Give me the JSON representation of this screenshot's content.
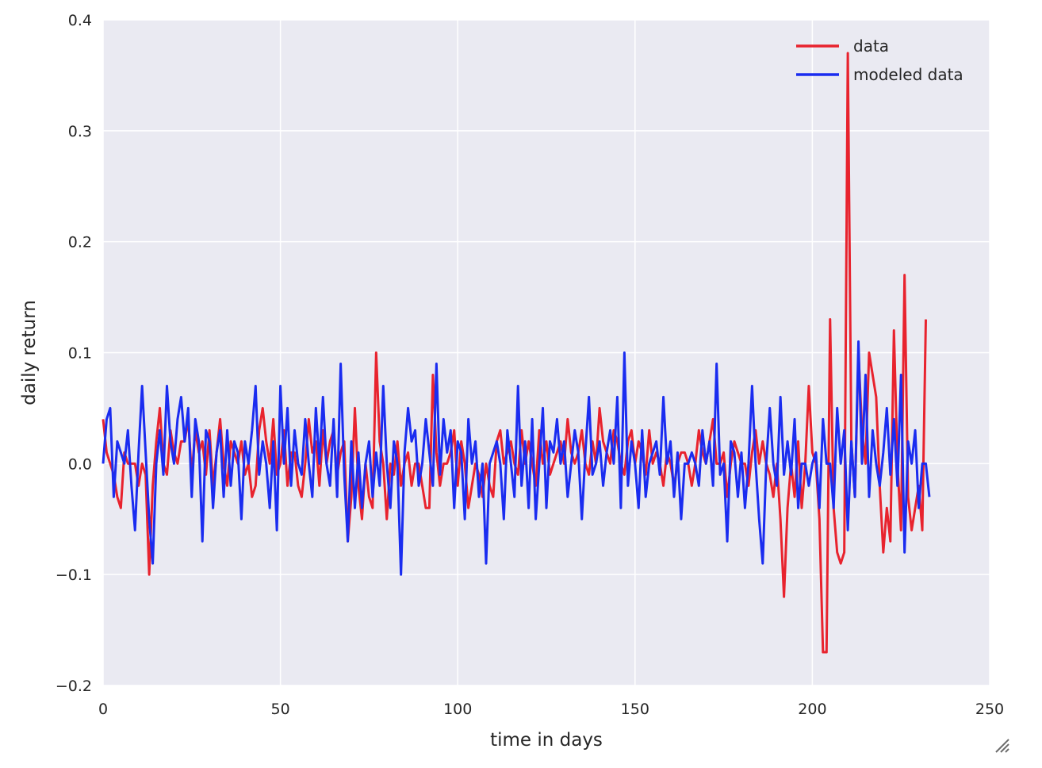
{
  "chart_data": {
    "type": "line",
    "title": "",
    "xlabel": "time in days",
    "ylabel": "daily return",
    "xlim": [
      0,
      250
    ],
    "ylim": [
      -0.2,
      0.4
    ],
    "xticks": [
      0,
      50,
      100,
      150,
      200,
      250
    ],
    "yticks": [
      -0.2,
      -0.1,
      0.0,
      0.1,
      0.2,
      0.3,
      0.4
    ],
    "xtick_labels": [
      "0",
      "50",
      "100",
      "150",
      "200",
      "250"
    ],
    "ytick_labels": [
      "−0.2",
      "−0.1",
      "0.0",
      "0.1",
      "0.2",
      "0.3",
      "0.4"
    ],
    "grid": true,
    "legend_position": "top-right",
    "background_color": "#eaeaf2",
    "grid_color": "#ffffff",
    "series": [
      {
        "name": "data",
        "color": "#e8232e",
        "values": [
          0.04,
          0.01,
          0.0,
          -0.01,
          -0.03,
          -0.04,
          0.01,
          0.0,
          0.0,
          0.0,
          -0.02,
          0.0,
          -0.01,
          -0.1,
          -0.02,
          0.02,
          0.05,
          0.0,
          -0.01,
          0.03,
          0.01,
          0.0,
          0.02,
          0.02,
          0.04,
          -0.01,
          0.03,
          0.01,
          0.02,
          -0.01,
          0.03,
          -0.02,
          0.01,
          0.04,
          0.0,
          -0.02,
          0.02,
          0.01,
          0.0,
          0.02,
          -0.01,
          0.0,
          -0.03,
          -0.02,
          0.03,
          0.05,
          0.02,
          0.0,
          0.04,
          -0.01,
          0.0,
          0.03,
          -0.02,
          0.01,
          0.01,
          -0.02,
          -0.03,
          0.0,
          0.04,
          0.01,
          0.02,
          -0.02,
          0.03,
          0.0,
          0.02,
          0.03,
          -0.01,
          0.01,
          0.02,
          -0.07,
          -0.03,
          0.05,
          -0.02,
          -0.05,
          0.0,
          -0.03,
          -0.04,
          0.1,
          0.02,
          0.0,
          -0.05,
          0.0,
          -0.01,
          0.02,
          -0.02,
          0.0,
          0.01,
          -0.02,
          0.0,
          0.0,
          -0.02,
          -0.04,
          -0.04,
          0.08,
          0.01,
          -0.02,
          0.0,
          0.0,
          0.01,
          0.03,
          -0.02,
          0.02,
          0.0,
          -0.04,
          -0.02,
          0.0,
          -0.01,
          -0.03,
          0.0,
          -0.02,
          -0.03,
          0.02,
          0.03,
          0.0,
          0.01,
          0.02,
          0.0,
          -0.01,
          0.03,
          0.0,
          0.02,
          0.0,
          -0.02,
          0.03,
          0.0,
          0.02,
          -0.01,
          0.0,
          0.01,
          0.02,
          0.0,
          0.04,
          0.01,
          0.0,
          0.01,
          0.03,
          0.0,
          -0.01,
          0.02,
          0.0,
          0.05,
          0.02,
          0.01,
          0.0,
          0.03,
          0.02,
          0.0,
          -0.01,
          0.02,
          0.03,
          0.0,
          0.02,
          0.01,
          -0.01,
          0.03,
          0.0,
          0.01,
          0.0,
          -0.02,
          0.01,
          0.0,
          -0.02,
          0.0,
          0.01,
          0.01,
          0.0,
          -0.02,
          0.0,
          0.03,
          0.01,
          0.0,
          0.02,
          0.04,
          0.0,
          0.0,
          0.01,
          -0.03,
          0.0,
          0.02,
          0.01,
          0.0,
          0.0,
          -0.02,
          0.01,
          0.03,
          0.0,
          0.02,
          0.0,
          -0.01,
          -0.03,
          0.0,
          -0.05,
          -0.12,
          -0.04,
          0.0,
          -0.03,
          0.02,
          -0.04,
          0.0,
          0.07,
          0.01,
          0.0,
          -0.05,
          -0.17,
          -0.17,
          0.13,
          -0.04,
          -0.08,
          -0.09,
          -0.08,
          0.37,
          0.02,
          -0.03,
          0.1,
          0.03,
          0.0,
          0.1,
          0.08,
          0.06,
          -0.02,
          -0.08,
          -0.04,
          -0.07,
          0.12,
          0.0,
          -0.06,
          0.17,
          -0.03,
          -0.06,
          -0.04,
          -0.02,
          -0.06,
          0.13
        ],
        "x_step": 1
      },
      {
        "name": "modeled data",
        "color": "#1a2cf0",
        "values": [
          0.0,
          0.04,
          0.05,
          -0.03,
          0.02,
          0.01,
          0.0,
          0.03,
          -0.02,
          -0.06,
          0.01,
          0.07,
          0.01,
          -0.05,
          -0.09,
          0.0,
          0.03,
          -0.01,
          0.07,
          0.02,
          0.0,
          0.04,
          0.06,
          0.02,
          0.05,
          -0.03,
          0.04,
          0.02,
          -0.07,
          0.03,
          0.02,
          -0.04,
          0.01,
          0.03,
          -0.03,
          0.03,
          -0.02,
          0.02,
          0.01,
          -0.05,
          0.02,
          0.0,
          0.03,
          0.07,
          -0.01,
          0.02,
          0.0,
          -0.04,
          0.02,
          -0.06,
          0.07,
          0.0,
          0.05,
          -0.02,
          0.03,
          0.0,
          -0.01,
          0.04,
          0.0,
          -0.03,
          0.05,
          0.0,
          0.06,
          0.0,
          -0.02,
          0.04,
          -0.03,
          0.09,
          -0.01,
          -0.07,
          0.02,
          -0.04,
          0.01,
          -0.04,
          0.0,
          0.02,
          -0.03,
          0.01,
          -0.02,
          0.07,
          0.0,
          -0.04,
          0.02,
          0.0,
          -0.1,
          0.01,
          0.05,
          0.02,
          0.03,
          -0.02,
          0.0,
          0.04,
          0.01,
          -0.02,
          0.09,
          -0.01,
          0.04,
          0.01,
          0.03,
          -0.04,
          0.02,
          0.01,
          -0.05,
          0.04,
          0.0,
          0.02,
          -0.03,
          0.0,
          -0.09,
          0.0,
          0.01,
          0.02,
          0.0,
          -0.05,
          0.03,
          0.0,
          -0.03,
          0.07,
          -0.02,
          0.02,
          -0.04,
          0.04,
          -0.05,
          0.0,
          0.05,
          -0.04,
          0.02,
          0.01,
          0.04,
          0.0,
          0.02,
          -0.03,
          0.0,
          0.03,
          0.01,
          -0.05,
          0.01,
          0.06,
          -0.01,
          0.0,
          0.02,
          -0.02,
          0.01,
          0.03,
          0.0,
          0.06,
          -0.04,
          0.1,
          -0.02,
          0.02,
          0.0,
          -0.04,
          0.03,
          -0.03,
          0.0,
          0.01,
          0.02,
          -0.01,
          0.06,
          0.0,
          0.02,
          -0.03,
          0.01,
          -0.05,
          0.0,
          0.0,
          0.01,
          0.0,
          -0.02,
          0.03,
          0.0,
          0.02,
          -0.02,
          0.09,
          -0.01,
          0.0,
          -0.07,
          0.02,
          0.01,
          -0.03,
          0.01,
          -0.04,
          0.0,
          0.07,
          0.0,
          -0.05,
          -0.09,
          0.0,
          0.05,
          0.0,
          -0.02,
          0.06,
          -0.01,
          0.02,
          -0.01,
          0.04,
          -0.04,
          0.0,
          0.0,
          -0.02,
          0.0,
          0.01,
          -0.04,
          0.04,
          0.0,
          0.0,
          -0.04,
          0.05,
          0.0,
          0.03,
          -0.06,
          0.02,
          -0.03,
          0.11,
          0.0,
          0.08,
          -0.03,
          0.03,
          0.0,
          -0.02,
          0.01,
          0.05,
          -0.01,
          0.04,
          -0.02,
          0.08,
          -0.08,
          0.02,
          0.0,
          0.03,
          -0.04,
          0.0,
          0.0,
          -0.03
        ],
        "x_step": 1
      }
    ]
  },
  "resize_handle_icon": "resize-grip-icon"
}
